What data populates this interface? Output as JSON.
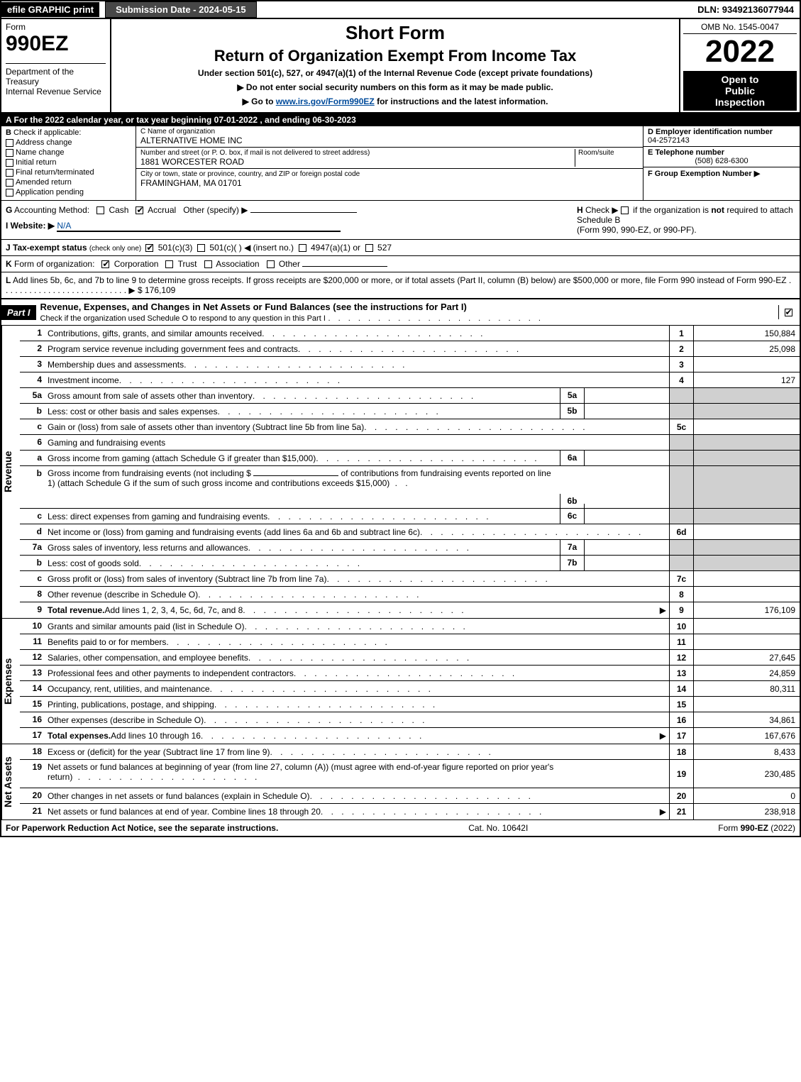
{
  "top_bar": {
    "efile": "efile GRAPHIC print",
    "submission": "Submission Date - 2024-05-15",
    "dln": "DLN: 93492136077944"
  },
  "header": {
    "form_word": "Form",
    "form_number": "990EZ",
    "dept1": "Department of the Treasury",
    "dept2": "Internal Revenue Service",
    "short_form": "Short Form",
    "return_title": "Return of Organization Exempt From Income Tax",
    "under_section": "Under section 501(c), 527, or 4947(a)(1) of the Internal Revenue Code (except private foundations)",
    "ssn_warning": "▶ Do not enter social security numbers on this form as it may be made public.",
    "goto_pre": "▶ Go to ",
    "goto_link": "www.irs.gov/Form990EZ",
    "goto_post": " for instructions and the latest information.",
    "omb": "OMB No. 1545-0047",
    "tax_year": "2022",
    "inspection1": "Open to",
    "inspection2": "Public",
    "inspection3": "Inspection"
  },
  "section_a": "A  For the 2022 calendar year, or tax year beginning 07-01-2022  , and ending 06-30-2023",
  "section_b": {
    "lead": "B",
    "check_if": "Check if applicable:",
    "items": [
      "Address change",
      "Name change",
      "Initial return",
      "Final return/terminated",
      "Amended return",
      "Application pending"
    ]
  },
  "section_c": {
    "name_label": "C Name of organization",
    "name_value": "ALTERNATIVE HOME INC",
    "street_label": "Number and street (or P. O. box, if mail is not delivered to street address)",
    "room_label": "Room/suite",
    "street_value": "1881 WORCESTER ROAD",
    "city_label": "City or town, state or province, country, and ZIP or foreign postal code",
    "city_value": "FRAMINGHAM, MA  01701"
  },
  "section_d": {
    "ein_label": "D Employer identification number",
    "ein_value": "04-2572143",
    "tel_label": "E Telephone number",
    "tel_value": "(508) 628-6300",
    "group_label": "F Group Exemption Number   ▶"
  },
  "section_g": {
    "lead": "G",
    "label": "Accounting Method:",
    "cash": "Cash",
    "accrual": "Accrual",
    "other": "Other (specify) ▶"
  },
  "section_h": {
    "lead": "H",
    "text1": "Check ▶",
    "text2": "if the organization is ",
    "not": "not",
    "text3": " required to attach Schedule B",
    "text4": "(Form 990, 990-EZ, or 990-PF)."
  },
  "section_i": {
    "lead": "I Website: ▶",
    "value": "N/A"
  },
  "section_j": {
    "lead": "J Tax-exempt status",
    "hint": "(check only one) ­",
    "c3": "501(c)(3)",
    "c": "501(c)(   ) ◀ (insert no.)",
    "a1": "4947(a)(1) or",
    "s527": "527"
  },
  "section_k": {
    "lead": "K",
    "label": "Form of organization:",
    "corp": "Corporation",
    "trust": "Trust",
    "assoc": "Association",
    "other": "Other"
  },
  "section_l": {
    "lead": "L",
    "text": "Add lines 5b, 6c, and 7b to line 9 to determine gross receipts. If gross receipts are $200,000 or more, or if total assets (Part II, column (B) below) are $500,000 or more, file Form 990 instead of Form 990-EZ",
    "arrow": "▶ $",
    "value": "176,109"
  },
  "part1": {
    "label": "Part I",
    "title": "Revenue, Expenses, and Changes in Net Assets or Fund Balances (see the instructions for Part I)",
    "check_text": "Check if the organization used Schedule O to respond to any question in this Part I",
    "checked": true
  },
  "sidecats": {
    "revenue": "Revenue",
    "expenses": "Expenses",
    "net": "Net Assets"
  },
  "revenue_lines": [
    {
      "num": "1",
      "desc": "Contributions, gifts, grants, and similar amounts received",
      "col_num": "1",
      "col_val": "150,884"
    },
    {
      "num": "2",
      "desc": "Program service revenue including government fees and contracts",
      "col_num": "2",
      "col_val": "25,098"
    },
    {
      "num": "3",
      "desc": "Membership dues and assessments",
      "col_num": "3",
      "col_val": ""
    },
    {
      "num": "4",
      "desc": "Investment income",
      "col_num": "4",
      "col_val": "127"
    }
  ],
  "line5a": {
    "num": "5a",
    "desc": "Gross amount from sale of assets other than inventory",
    "mini_num": "5a"
  },
  "line5b": {
    "num": "b",
    "desc": "Less: cost or other basis and sales expenses",
    "mini_num": "5b"
  },
  "line5c": {
    "num": "c",
    "desc": "Gain or (loss) from sale of assets other than inventory (Subtract line 5b from line 5a)",
    "col_num": "5c"
  },
  "line6": {
    "num": "6",
    "desc": "Gaming and fundraising events"
  },
  "line6a": {
    "num": "a",
    "desc": "Gross income from gaming (attach Schedule G if greater than $15,000)",
    "mini_num": "6a"
  },
  "line6b": {
    "num": "b",
    "desc1": "Gross income from fundraising events (not including $",
    "desc2": "of contributions from fundraising events reported on line 1) (attach Schedule G if the sum of such gross income and contributions exceeds $15,000)",
    "mini_num": "6b"
  },
  "line6c": {
    "num": "c",
    "desc": "Less: direct expenses from gaming and fundraising events",
    "mini_num": "6c"
  },
  "line6d": {
    "num": "d",
    "desc": "Net income or (loss) from gaming and fundraising events (add lines 6a and 6b and subtract line 6c)",
    "col_num": "6d"
  },
  "line7a": {
    "num": "7a",
    "desc": "Gross sales of inventory, less returns and allowances",
    "mini_num": "7a"
  },
  "line7b": {
    "num": "b",
    "desc": "Less: cost of goods sold",
    "mini_num": "7b"
  },
  "line7c": {
    "num": "c",
    "desc": "Gross profit or (loss) from sales of inventory (Subtract line 7b from line 7a)",
    "col_num": "7c"
  },
  "line8": {
    "num": "8",
    "desc": "Other revenue (describe in Schedule O)",
    "col_num": "8"
  },
  "line9": {
    "num": "9",
    "desc_bold": "Total revenue.",
    "desc": " Add lines 1, 2, 3, 4, 5c, 6d, 7c, and 8",
    "arrow": "▶",
    "col_num": "9",
    "col_val": "176,109"
  },
  "expense_lines": [
    {
      "num": "10",
      "desc": "Grants and similar amounts paid (list in Schedule O)",
      "col_num": "10",
      "col_val": ""
    },
    {
      "num": "11",
      "desc": "Benefits paid to or for members",
      "col_num": "11",
      "col_val": ""
    },
    {
      "num": "12",
      "desc": "Salaries, other compensation, and employee benefits",
      "col_num": "12",
      "col_val": "27,645"
    },
    {
      "num": "13",
      "desc": "Professional fees and other payments to independent contractors",
      "col_num": "13",
      "col_val": "24,859"
    },
    {
      "num": "14",
      "desc": "Occupancy, rent, utilities, and maintenance",
      "col_num": "14",
      "col_val": "80,311"
    },
    {
      "num": "15",
      "desc": "Printing, publications, postage, and shipping",
      "col_num": "15",
      "col_val": ""
    },
    {
      "num": "16",
      "desc": "Other expenses (describe in Schedule O)",
      "col_num": "16",
      "col_val": "34,861"
    }
  ],
  "line17": {
    "num": "17",
    "desc_bold": "Total expenses.",
    "desc": " Add lines 10 through 16",
    "arrow": "▶",
    "col_num": "17",
    "col_val": "167,676"
  },
  "net_lines": [
    {
      "num": "18",
      "desc": "Excess or (deficit) for the year (Subtract line 17 from line 9)",
      "col_num": "18",
      "col_val": "8,433"
    }
  ],
  "line19": {
    "num": "19",
    "desc": "Net assets or fund balances at beginning of year (from line 27, column (A)) (must agree with end-of-year figure reported on prior year's return)",
    "col_num": "19",
    "col_val": "230,485"
  },
  "line20": {
    "num": "20",
    "desc": "Other changes in net assets or fund balances (explain in Schedule O)",
    "col_num": "20",
    "col_val": "0"
  },
  "line21": {
    "num": "21",
    "desc": "Net assets or fund balances at end of year. Combine lines 18 through 20",
    "arrow": "▶",
    "col_num": "21",
    "col_val": "238,918"
  },
  "footer": {
    "left": "For Paperwork Reduction Act Notice, see the separate instructions.",
    "mid": "Cat. No. 10642I",
    "right_pre": "Form ",
    "right_bold": "990-EZ",
    "right_post": " (2022)"
  }
}
